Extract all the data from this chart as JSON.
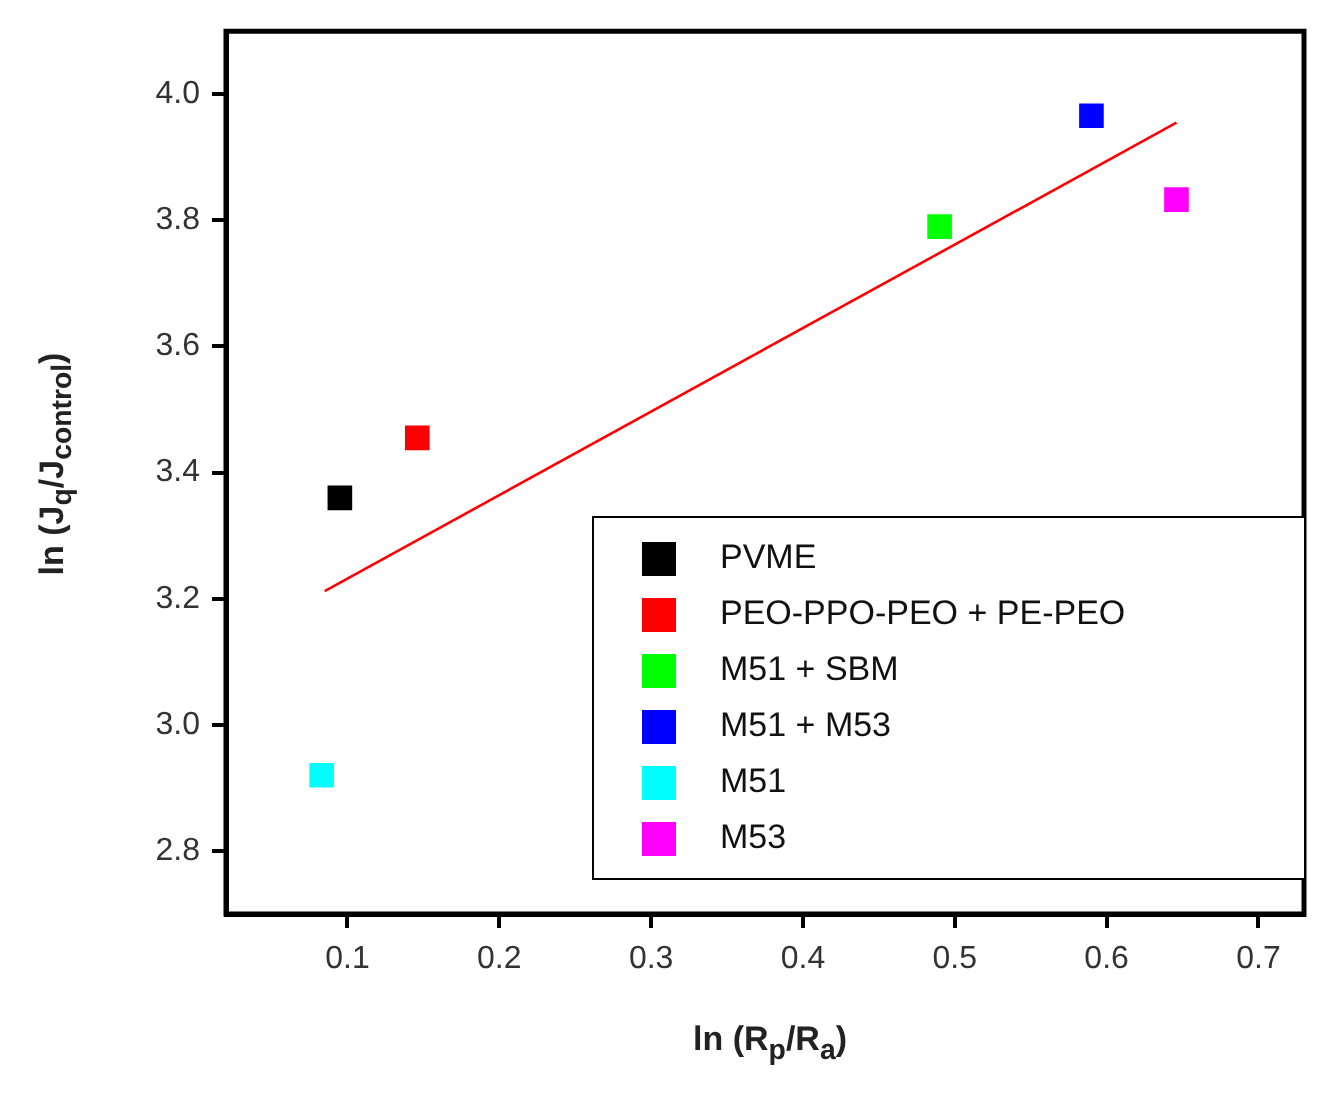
{
  "chart_data": {
    "type": "scatter",
    "xlabel": "ln (R$_{p}$/R$_{a}$)",
    "ylabel": "ln (J$_{q}$/J$_{control}$)",
    "xlim": [
      0.02,
      0.73
    ],
    "ylim": [
      2.7,
      4.1
    ],
    "xticks": [
      0.1,
      0.2,
      0.3,
      0.4,
      0.5,
      0.6,
      0.7
    ],
    "yticks": [
      2.8,
      {
        "value": 3,
        "label": "3.0"
      },
      3.2,
      3.4,
      3.6,
      3.8,
      {
        "value": 4,
        "label": "4.0"
      }
    ],
    "grid": false,
    "legend": "bottom right",
    "marker": "square",
    "series": [
      {
        "name": "PVME",
        "color": "#000000",
        "x": [
          0.095
        ],
        "values": [
          3.36
        ]
      },
      {
        "name": "PEO-PPO-PEO + PE-PEO",
        "color": "#ff0000",
        "x": [
          0.146
        ],
        "values": [
          3.455
        ]
      },
      {
        "name": "M51 + SBM",
        "color": "#00ff00",
        "x": [
          0.49
        ],
        "values": [
          3.79
        ]
      },
      {
        "name": "M51 + M53",
        "color": "#0000ff",
        "x": [
          0.59
        ],
        "values": [
          3.966
        ]
      },
      {
        "name": "M51",
        "color": "#00ffff",
        "x": [
          0.083
        ],
        "values": [
          2.92
        ]
      },
      {
        "name": "M53",
        "color": "#ff00ff",
        "x": [
          0.646
        ],
        "values": [
          3.833
        ]
      },
      {
        "type": "line",
        "color": "#ff0000",
        "marker": "none",
        "line_style": "solid",
        "x": [
          0.085,
          0.646
        ],
        "values": [
          3.212,
          3.955
        ]
      }
    ]
  }
}
